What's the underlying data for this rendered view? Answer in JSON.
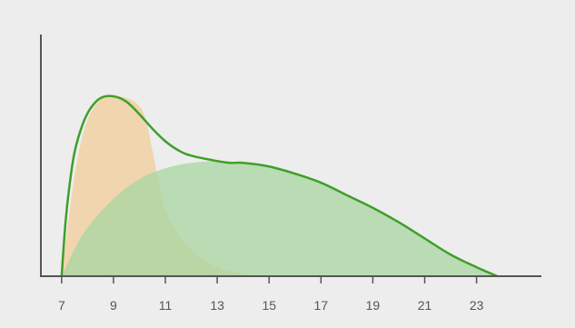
{
  "chart_data": {
    "type": "area",
    "xlim": [
      6.2,
      25.5
    ],
    "ylim": [
      0,
      1
    ],
    "x_ticks": [
      "7",
      "9",
      "11",
      "13",
      "15",
      "17",
      "19",
      "21",
      "23"
    ],
    "x_tick_values": [
      7,
      9,
      11,
      13,
      15,
      17,
      19,
      21,
      23
    ],
    "grid": false,
    "series": [
      {
        "color": "#f0cc98",
        "x": [
          7,
          7.3,
          7.6,
          8,
          8.5,
          9,
          9.5,
          9.9,
          10.2,
          10.5,
          10.8,
          11,
          11.5,
          12,
          12.5,
          13,
          14,
          14.5
        ],
        "y": [
          0,
          0.35,
          0.64,
          0.87,
          0.98,
          1.0,
          0.99,
          0.96,
          0.89,
          0.7,
          0.48,
          0.37,
          0.23,
          0.15,
          0.09,
          0.05,
          0.01,
          0
        ]
      },
      {
        "color": "#a8d5a0",
        "x": [
          7,
          7.5,
          8,
          9,
          10,
          11,
          12,
          13,
          14,
          15,
          16,
          17,
          18,
          19,
          20,
          21,
          22,
          23,
          23.8
        ],
        "y": [
          0,
          0.15,
          0.27,
          0.43,
          0.54,
          0.6,
          0.63,
          0.64,
          0.63,
          0.61,
          0.57,
          0.52,
          0.45,
          0.38,
          0.3,
          0.21,
          0.12,
          0.05,
          0
        ]
      },
      {
        "color": "#3f9f2a",
        "fill": false,
        "x": [
          7,
          7.15,
          7.3,
          7.5,
          7.8,
          8.1,
          8.5,
          9,
          9.5,
          10,
          10.5,
          11,
          11.5,
          12,
          13,
          13.5,
          14,
          15,
          16,
          17,
          18,
          19,
          20,
          21,
          22,
          23,
          23.8
        ],
        "y": [
          0,
          0.3,
          0.5,
          0.69,
          0.84,
          0.93,
          0.99,
          1.0,
          0.97,
          0.9,
          0.82,
          0.75,
          0.7,
          0.67,
          0.64,
          0.63,
          0.63,
          0.61,
          0.57,
          0.52,
          0.45,
          0.38,
          0.3,
          0.21,
          0.12,
          0.05,
          0
        ]
      }
    ]
  }
}
